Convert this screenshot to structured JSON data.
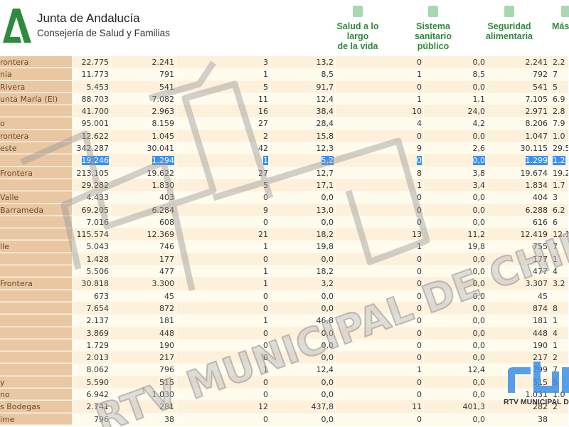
{
  "header": {
    "brand_title": "Junta de Andalucía",
    "brand_subtitle": "Consejería de Salud y Familias",
    "nav": [
      {
        "label_lines": [
          "Salud a lo largo",
          "de la vida"
        ],
        "icon": "book-medical-icon"
      },
      {
        "label_lines": [
          "Sistema",
          "sanitario",
          "público"
        ],
        "icon": "hospital-icon"
      },
      {
        "label_lines": [
          "Seguridad",
          "alimentaria"
        ],
        "icon": "glasses-drink-icon"
      },
      {
        "label_lines": [
          "Más"
        ],
        "icon": "more-icon"
      }
    ],
    "accent_color": "#2f8a3a"
  },
  "table": {
    "selected_row": 8,
    "rows": [
      [
        "rontera",
        "22.775",
        "2.241",
        "3",
        "13,2",
        "0",
        "0,0",
        "2.241",
        "2.2"
      ],
      [
        "nia",
        "11.773",
        "791",
        "1",
        "8,5",
        "1",
        "8,5",
        "792",
        "7"
      ],
      [
        "Rivera",
        "5.453",
        "541",
        "5",
        "91,7",
        "0",
        "0,0",
        "541",
        "5"
      ],
      [
        "unta María (El)",
        "88.703",
        "7.082",
        "11",
        "12,4",
        "1",
        "1,1",
        "7.105",
        "6.9"
      ],
      [
        "",
        "41.700",
        "2.963",
        "16",
        "38,4",
        "10",
        "24,0",
        "2.971",
        "2.8"
      ],
      [
        "o",
        "95.001",
        "8.159",
        "27",
        "28,4",
        "4",
        "4,2",
        "8.206",
        "7.9"
      ],
      [
        "rontera",
        "12.622",
        "1.045",
        "2",
        "15,8",
        "0",
        "0,0",
        "1.047",
        "1.0"
      ],
      [
        "este",
        "342.287",
        "30.041",
        "42",
        "12,3",
        "9",
        "2,6",
        "30.115",
        "29.5"
      ],
      [
        "",
        "19.246",
        "1.294",
        "1",
        "5,2",
        "0",
        "0,0",
        "1.299",
        "1.2"
      ],
      [
        "Frontera",
        "213.105",
        "19.622",
        "27",
        "12,7",
        "8",
        "3,8",
        "19.674",
        "19.2"
      ],
      [
        "",
        "29.282",
        "1.830",
        "5",
        "17,1",
        "1",
        "3,4",
        "1.834",
        "1.7"
      ],
      [
        " Valle",
        "4.433",
        "403",
        "0",
        "0,0",
        "0",
        "0,0",
        "404",
        "3"
      ],
      [
        "Barrameda",
        "69.205",
        "6.284",
        "9",
        "13,0",
        "0",
        "0,0",
        "6.288",
        "6.2"
      ],
      [
        "",
        "7.016",
        "608",
        "0",
        "0,0",
        "0",
        "0,0",
        "616",
        "6"
      ],
      [
        "",
        "115.574",
        "12.369",
        "21",
        "18,2",
        "13",
        "11,2",
        "12.419",
        "12.1"
      ],
      [
        "lle",
        "5.043",
        "746",
        "1",
        "19,8",
        "1",
        "19,8",
        "755",
        "7"
      ],
      [
        "",
        "1.428",
        "177",
        "0",
        "0,0",
        "0",
        "0,0",
        "177",
        "1"
      ],
      [
        "",
        "5.506",
        "477",
        "1",
        "18,2",
        "0",
        "0,0",
        "477",
        "4"
      ],
      [
        "Frontera",
        "30.818",
        "3.300",
        "1",
        "3,2",
        "0",
        "0,0",
        "3.307",
        "3.2"
      ],
      [
        "",
        "673",
        "45",
        "0",
        "0,0",
        "0",
        "0,0",
        "45",
        ""
      ],
      [
        "",
        "7.654",
        "872",
        "0",
        "0,0",
        "0",
        "0,0",
        "874",
        "8"
      ],
      [
        "",
        "2.137",
        "181",
        "1",
        "46,8",
        "0",
        "0,0",
        "181",
        "1"
      ],
      [
        "",
        "3.869",
        "448",
        "0",
        "0,0",
        "0",
        "0,0",
        "448",
        "4"
      ],
      [
        "",
        "1.729",
        "190",
        "0",
        "0,0",
        "0",
        "0,0",
        "190",
        "1"
      ],
      [
        "",
        "2.013",
        "217",
        "0",
        "0,0",
        "0",
        "0,0",
        "217",
        "2"
      ],
      [
        "",
        "8.062",
        "796",
        "1",
        "12,4",
        "1",
        "12,4",
        "799",
        "7"
      ],
      [
        "y",
        "5.590",
        "515",
        "0",
        "0,0",
        "0",
        "0,0",
        "515",
        "5"
      ],
      [
        "no",
        "6.942",
        "1.030",
        "0",
        "0,0",
        "0",
        "0,0",
        "1.031",
        "1.0"
      ],
      [
        "s Bodegas",
        "2.741",
        "281",
        "12",
        "437,8",
        "11",
        "401,3",
        "282",
        "2"
      ],
      [
        "ime",
        "796",
        "38",
        "0",
        "0,0",
        "0",
        "0,0",
        "38",
        ""
      ]
    ]
  },
  "watermark": {
    "text": "RTV MUNICIPAL DE CHIPIONA",
    "logo_text": "RTV MUNICIPAL DE CH",
    "logo_color": "#3a8ee6"
  }
}
